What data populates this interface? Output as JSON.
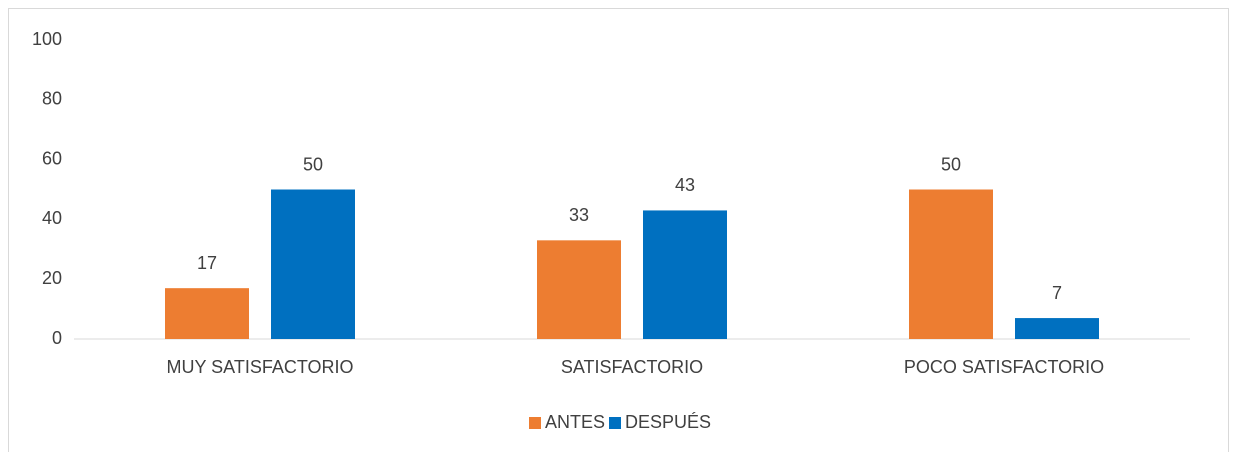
{
  "chart_data": {
    "type": "bar",
    "categories": [
      "MUY SATISFACTORIO",
      "SATISFACTORIO",
      "POCO SATISFACTORIO"
    ],
    "series": [
      {
        "name": "ANTES",
        "color": "#ed7d31",
        "values": [
          17,
          33,
          50
        ]
      },
      {
        "name": "DESPUÉS",
        "color": "#0070c0",
        "values": [
          50,
          43,
          7
        ]
      }
    ],
    "ylim": [
      0,
      100
    ],
    "yticks": [
      0,
      20,
      40,
      60,
      80,
      100
    ],
    "grid": false,
    "legend": "bottom"
  }
}
